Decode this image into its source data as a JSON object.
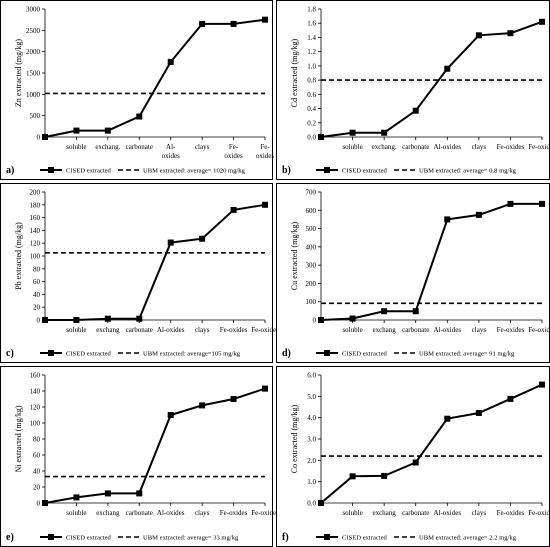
{
  "chart_data": [
    {
      "type": "line",
      "panel_label": "a)",
      "ylabel": "Zn extracted (mg/kg)",
      "ylim": [
        0,
        3000
      ],
      "yticks": [
        0,
        500,
        1000,
        1500,
        2000,
        2500,
        3000
      ],
      "tick_decimals": 0,
      "categories": [
        "",
        "soluble",
        "exchang.",
        "carbonate",
        "Al-oxides",
        "clays",
        "Fe-oxides",
        "Fe-oxides"
      ],
      "category_lines": [
        [
          ""
        ],
        [
          "soluble"
        ],
        [
          "exchang."
        ],
        [
          "carbonate"
        ],
        [
          "Al-",
          "oxides"
        ],
        [
          "clays"
        ],
        [
          "Fe-",
          "oxides"
        ],
        [
          "Fe-",
          "oxides"
        ]
      ],
      "series": [
        {
          "name": "CISED extracted",
          "values": [
            0,
            150,
            150,
            480,
            1760,
            2650,
            2650,
            2750
          ]
        }
      ],
      "reference_value": 1020,
      "legend": [
        "CISED extracted",
        "UBM extracted: average= 1020 mg/kg"
      ]
    },
    {
      "type": "line",
      "panel_label": "b)",
      "ylabel": "Cd extracted (mg/kg)",
      "ylim": [
        0,
        1.8
      ],
      "yticks": [
        0,
        0.2,
        0.4,
        0.6,
        0.8,
        1.0,
        1.2,
        1.4,
        1.6,
        1.8
      ],
      "tick_decimals": 1,
      "categories": [
        "",
        "soluble",
        "exchang.",
        "carbonate",
        "Al-oxides",
        "clays",
        "Fe-oxides",
        "Fe-oxides"
      ],
      "category_lines": [
        [
          ""
        ],
        [
          "soluble"
        ],
        [
          "exchang."
        ],
        [
          "carbonate"
        ],
        [
          "Al-oxides"
        ],
        [
          "clays"
        ],
        [
          "Fe-oxides"
        ],
        [
          "Fe-oxides"
        ]
      ],
      "series": [
        {
          "name": "CISED extracted",
          "values": [
            0,
            0.06,
            0.06,
            0.37,
            0.96,
            1.43,
            1.46,
            1.62
          ]
        }
      ],
      "reference_value": 0.8,
      "legend": [
        "CISED extracted",
        "UBM extracted: average= 0.8 mg/kg"
      ]
    },
    {
      "type": "line",
      "panel_label": "c)",
      "ylabel": "Pb extracted (mg/kg)",
      "ylim": [
        0,
        200
      ],
      "yticks": [
        0,
        20,
        40,
        60,
        80,
        100,
        120,
        140,
        160,
        180,
        200
      ],
      "tick_decimals": 0,
      "categories": [
        "",
        "soluble",
        "exchang",
        "carbonate",
        "Al-oxides",
        "clays",
        "Fe-oxides",
        "Fe-oxides"
      ],
      "category_lines": [
        [
          ""
        ],
        [
          "soluble"
        ],
        [
          "exchang"
        ],
        [
          "carbonate"
        ],
        [
          "Al-oxides"
        ],
        [
          "clays"
        ],
        [
          "Fe-oxides"
        ],
        [
          "Fe-oxides"
        ]
      ],
      "series": [
        {
          "name": "CISED extracted",
          "values": [
            0,
            0,
            2,
            2,
            121,
            127,
            172,
            180
          ]
        }
      ],
      "reference_value": 105,
      "legend": [
        "CISED extracted",
        "UBM extracted: average=105 mg/kg"
      ]
    },
    {
      "type": "line",
      "panel_label": "d)",
      "ylabel": "Cu extracted (mg/kg)",
      "ylim": [
        0,
        700
      ],
      "yticks": [
        0,
        100,
        200,
        300,
        400,
        500,
        600,
        700
      ],
      "tick_decimals": 0,
      "categories": [
        "",
        "soluble",
        "exchang",
        "carbonate",
        "Al-oxides",
        "clays",
        "Fe-oxides",
        "Fe-oxides"
      ],
      "category_lines": [
        [
          ""
        ],
        [
          "soluble"
        ],
        [
          "exchang"
        ],
        [
          "carbonate"
        ],
        [
          "Al-oxides"
        ],
        [
          "clays"
        ],
        [
          "Fe-oxides"
        ],
        [
          "Fe-oxides"
        ]
      ],
      "series": [
        {
          "name": "CISED extracted",
          "values": [
            0,
            8,
            48,
            48,
            550,
            575,
            635,
            635
          ]
        }
      ],
      "reference_value": 91,
      "legend": [
        "CISED extracted",
        "UBM extracted: average= 91 mg/kg"
      ]
    },
    {
      "type": "line",
      "panel_label": "e)",
      "ylabel": "Ni extracted (mg/kg)",
      "ylim": [
        0,
        160
      ],
      "yticks": [
        0,
        20,
        40,
        60,
        80,
        100,
        120,
        140,
        160
      ],
      "tick_decimals": 0,
      "categories": [
        "",
        "soluble",
        "exchang",
        "carbonate",
        "Al-oxides",
        "clays",
        "Fe-oxides",
        "Fe-oxides"
      ],
      "category_lines": [
        [
          ""
        ],
        [
          "soluble"
        ],
        [
          "exchang"
        ],
        [
          "carbonate"
        ],
        [
          "Al-oxides"
        ],
        [
          "clays"
        ],
        [
          "Fe-oxides"
        ],
        [
          "Fe-oxides"
        ]
      ],
      "series": [
        {
          "name": "CISED extracted",
          "values": [
            0,
            7,
            12,
            12,
            110,
            122,
            130,
            143
          ]
        }
      ],
      "reference_value": 33,
      "legend": [
        "CISED extracted",
        "UBM extracted: average= 33 mg/kg"
      ]
    },
    {
      "type": "line",
      "panel_label": "f)",
      "ylabel": "Co extracted (mg/kg)",
      "ylim": [
        0,
        6
      ],
      "yticks": [
        0,
        1,
        2,
        3,
        4,
        5,
        6
      ],
      "tick_decimals": 1,
      "categories": [
        "",
        "soluble",
        "exchang",
        "carbonate",
        "Al-oxides",
        "clays",
        "Fe-oxides",
        "Fe-oxides"
      ],
      "category_lines": [
        [
          ""
        ],
        [
          "soluble"
        ],
        [
          "exchang"
        ],
        [
          "carbonate"
        ],
        [
          "Al-oxides"
        ],
        [
          "clays"
        ],
        [
          "Fe-oxides"
        ],
        [
          "Fe-oxides"
        ]
      ],
      "series": [
        {
          "name": "CISED extracted",
          "values": [
            0,
            1.25,
            1.27,
            1.9,
            3.95,
            4.22,
            4.88,
            5.55
          ]
        }
      ],
      "reference_value": 2.2,
      "legend": [
        "CISED extracted",
        "UBM extracted: average= 2.2 mg/kg"
      ]
    }
  ]
}
